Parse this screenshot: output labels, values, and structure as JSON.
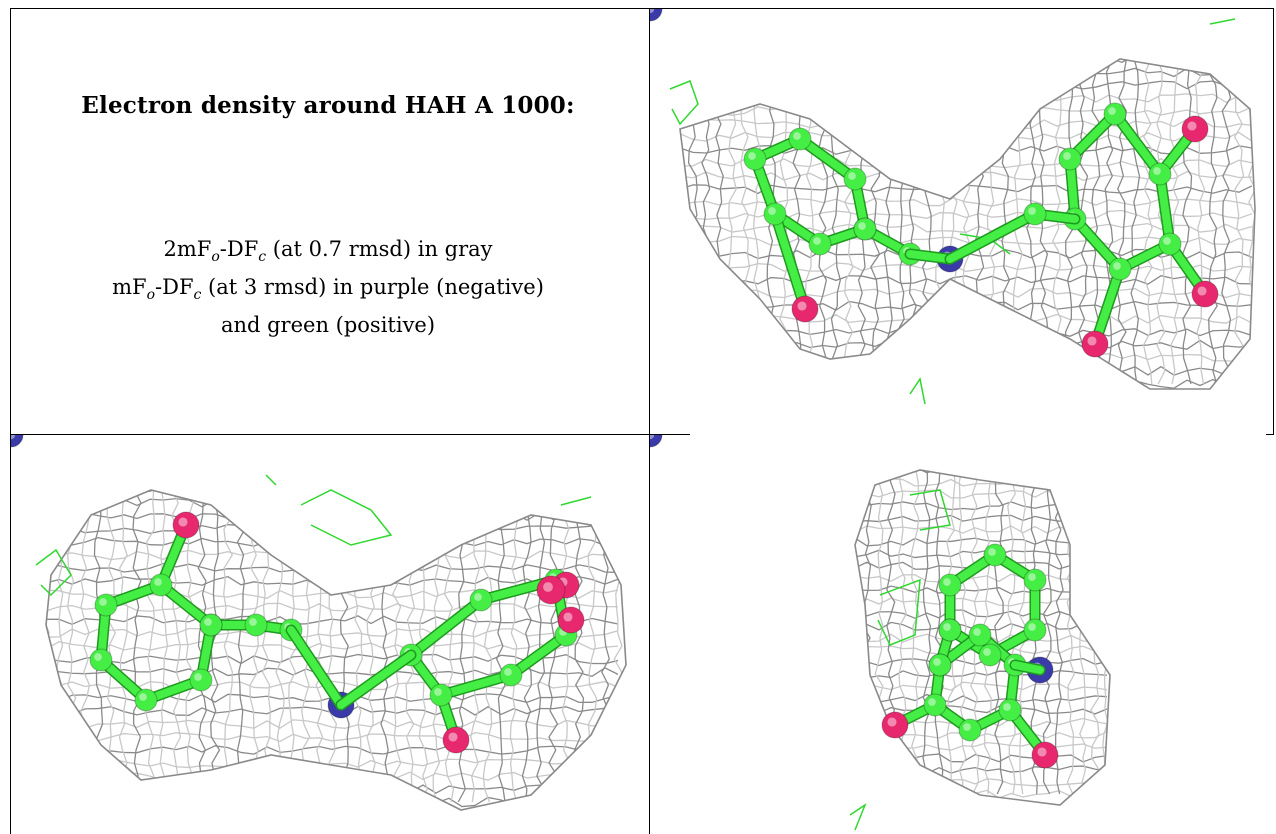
{
  "caption": {
    "heading": "Electron density around HAH A 1000:",
    "line1": {
      "pre": "2mF",
      "sub1": "o",
      "mid": "-DF",
      "sub2": "c",
      "post": " (at 0.7 rmsd) in gray"
    },
    "line2": {
      "pre": "mF",
      "sub1": "o",
      "mid": "-DF",
      "sub2": "c",
      "post": " (at 3 rmsd) in purple (negative)"
    },
    "line3": "and green (positive)"
  },
  "colors": {
    "mesh_gray": "#8a8a8a",
    "mesh_light": "#c8c8c8",
    "carbon_green": "#44ee44",
    "nitrogen_blue": "#3a3aa8",
    "oxygen_pink": "#e8286e",
    "positive_density_green": "#2fd82f"
  },
  "panels": [
    {
      "name": "view-top-right",
      "label": ""
    },
    {
      "name": "view-bottom-left",
      "label": ""
    },
    {
      "name": "view-bottom-right",
      "label": ""
    }
  ]
}
